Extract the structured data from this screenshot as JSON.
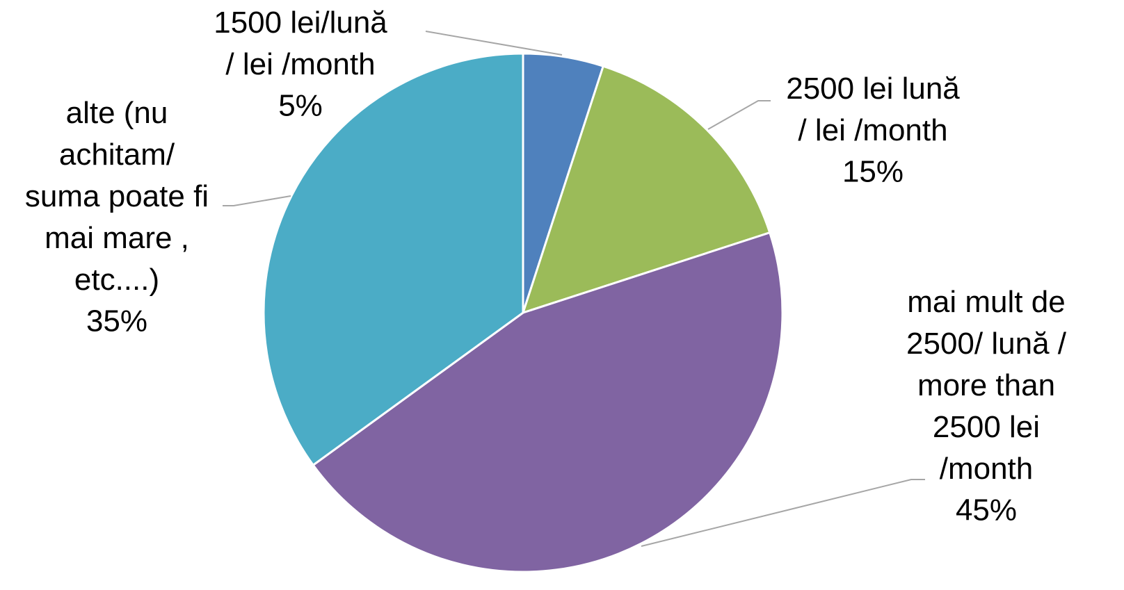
{
  "chart_data": {
    "type": "pie",
    "categories": [
      "1500 lei/lună\n/  lei /month",
      "2500 lei lună\n/ lei /month",
      "mai mult de\n2500/ lună /\nmore than\n2500 lei\n/month",
      "alte  (nu\nachitam/\nsuma poate fi\nmai mare ,\netc....)"
    ],
    "values": [
      5,
      15,
      45,
      35
    ],
    "value_labels": [
      "5%",
      "15%",
      "45%",
      "35%"
    ],
    "colors": [
      "#4f81bd",
      "#9bbb59",
      "#8064a2",
      "#4bacc6"
    ]
  }
}
